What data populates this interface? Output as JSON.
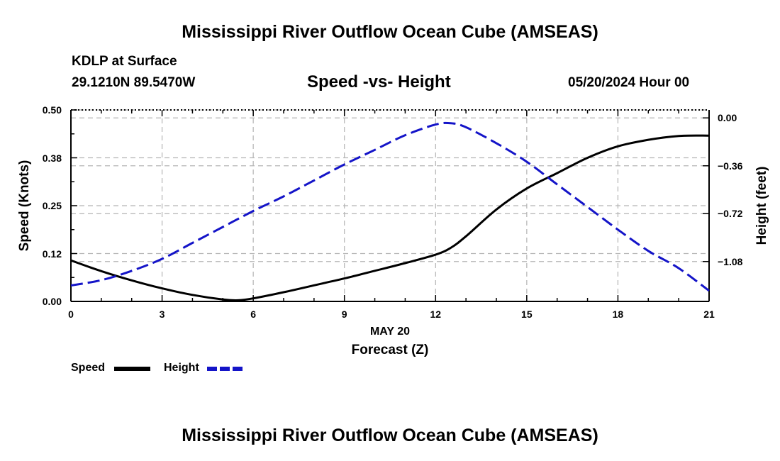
{
  "page": {
    "top_title": "Mississippi River Outflow Ocean Cube (AMSEAS)",
    "bottom_title": "Mississippi River Outflow Ocean Cube (AMSEAS)"
  },
  "header": {
    "station": "KDLP at Surface",
    "coords": "29.1210N  89.5470W",
    "subtitle": "Speed -vs- Height",
    "datetime": "05/20/2024 Hour 00"
  },
  "colors": {
    "speed": "#000000",
    "height": "#1414c8",
    "grid": "#b4b4b4"
  },
  "chart_data": {
    "type": "line",
    "title": "Speed -vs- Height",
    "xlabel": "Forecast (Z)",
    "xlabel_date": "MAY 20",
    "ylabel_left": "Speed (Knots)",
    "ylabel_right": "Height (feet)",
    "x_ticks": [
      0,
      3,
      6,
      9,
      12,
      15,
      18,
      21
    ],
    "x_tick_labels": [
      "0",
      "3",
      "6",
      "9",
      "12",
      "15",
      "18",
      "21"
    ],
    "xlim": [
      0,
      21
    ],
    "y_left_ticks": [
      0.0,
      0.125,
      0.25,
      0.375,
      0.5
    ],
    "y_left_tick_labels": [
      "0.00",
      "0.12",
      "0.25",
      "0.38",
      "0.50"
    ],
    "ylim_left": [
      0,
      0.5
    ],
    "y_right_ticks": [
      0.0,
      -0.36,
      -0.72,
      -1.08
    ],
    "y_right_tick_labels": [
      "0.00",
      "−0.36",
      "−0.72",
      "−1.08"
    ],
    "ylim_right": [
      -1.38,
      0.06
    ],
    "grid": true,
    "series": [
      {
        "name": "Speed",
        "axis": "left",
        "x": [
          0,
          1,
          2,
          3,
          4,
          5,
          5.5,
          6,
          7,
          8,
          9,
          10,
          11,
          12,
          12.5,
          13,
          14,
          15,
          16,
          17,
          18,
          19,
          20,
          21
        ],
        "values": [
          0.107,
          0.079,
          0.055,
          0.034,
          0.017,
          0.005,
          0.003,
          0.008,
          0.024,
          0.042,
          0.06,
          0.08,
          0.1,
          0.122,
          0.14,
          0.17,
          0.24,
          0.295,
          0.335,
          0.375,
          0.405,
          0.422,
          0.432,
          0.433
        ]
      },
      {
        "name": "Height",
        "axis": "right",
        "x": [
          0,
          1,
          2,
          3,
          4,
          5,
          6,
          7,
          8,
          9,
          10,
          11,
          12,
          12.5,
          13,
          14,
          15,
          16,
          17,
          18,
          19,
          20,
          21
        ],
        "values": [
          -1.26,
          -1.22,
          -1.15,
          -1.06,
          -0.94,
          -0.82,
          -0.7,
          -0.59,
          -0.47,
          -0.35,
          -0.24,
          -0.13,
          -0.05,
          -0.04,
          -0.07,
          -0.19,
          -0.33,
          -0.5,
          -0.67,
          -0.84,
          -1.0,
          -1.13,
          -1.3
        ]
      }
    ],
    "legend": [
      {
        "label": "Speed",
        "style": "solid"
      },
      {
        "label": "Height",
        "style": "dashed"
      }
    ]
  }
}
